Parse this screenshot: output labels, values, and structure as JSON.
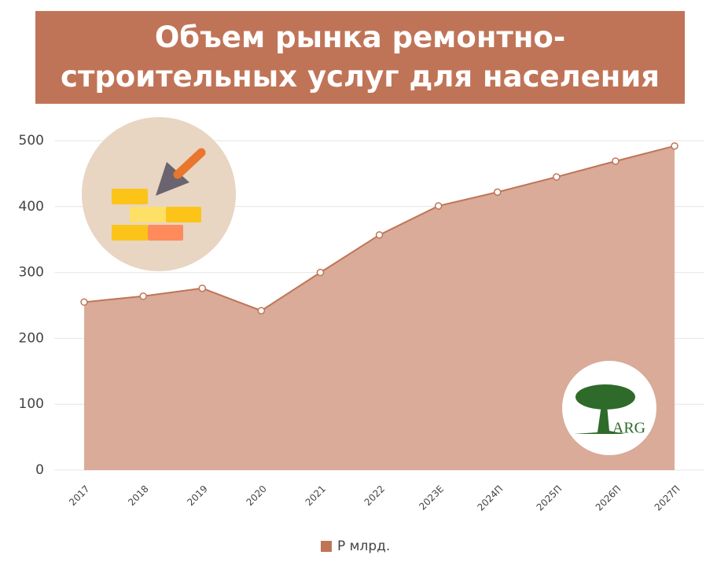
{
  "chart_data": {
    "type": "area",
    "title": "Объем рынка ремонтно-\nстроительных услуг для населения",
    "categories": [
      "2017",
      "2018",
      "2019",
      "2020",
      "2021",
      "2022",
      "2023E",
      "2024П",
      "2025П",
      "2026П",
      "2027П"
    ],
    "series": [
      {
        "name": "Р млрд.",
        "color": "#c07457",
        "fill": "#d9ab98",
        "values": [
          255,
          264,
          276,
          242,
          300,
          357,
          401,
          422,
          445,
          469,
          492
        ]
      }
    ],
    "ylim": [
      0,
      500
    ],
    "yticks": [
      0,
      100,
      200,
      300,
      400,
      500
    ],
    "grid": true,
    "logo": "ARG"
  }
}
